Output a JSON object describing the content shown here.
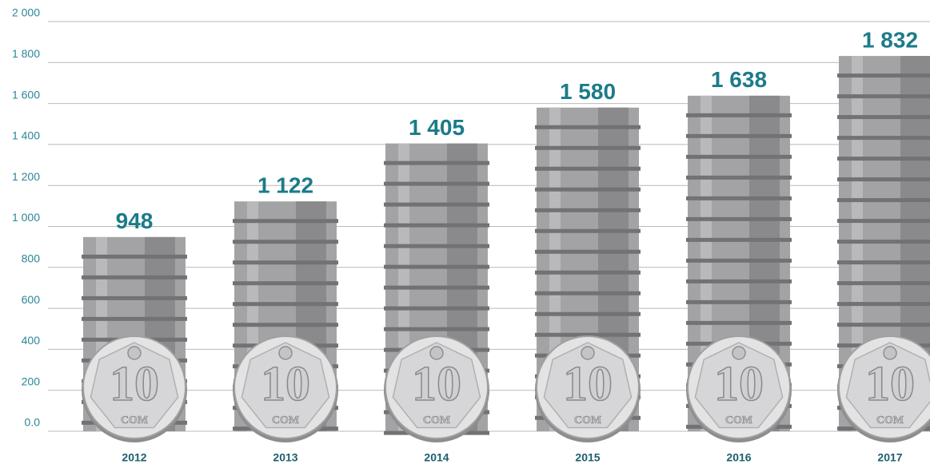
{
  "chart_data": {
    "type": "bar",
    "categories": [
      "2012",
      "2013",
      "2014",
      "2015",
      "2016",
      "2017"
    ],
    "values": [
      948,
      1122,
      1405,
      1580,
      1638,
      1832
    ],
    "value_labels": [
      "948",
      "1 122",
      "1 405",
      "1 580",
      "1 638",
      "1 832"
    ],
    "color": "#a3a3a5",
    "ylim": [
      0,
      2000
    ],
    "yticks": [
      {
        "value": 0,
        "label": "0.0"
      },
      200,
      400,
      600,
      800,
      {
        "value": 1000,
        "label": "1 000"
      },
      {
        "value": 1200,
        "label": "1 200"
      },
      {
        "value": 1400,
        "label": "1 400"
      },
      {
        "value": 1600,
        "label": "1 600"
      },
      {
        "value": 1800,
        "label": "1 800"
      },
      {
        "value": 2000,
        "label": "2 000"
      }
    ],
    "grid": true,
    "coin_denomination": "10",
    "coin_currency": "СОМ"
  }
}
